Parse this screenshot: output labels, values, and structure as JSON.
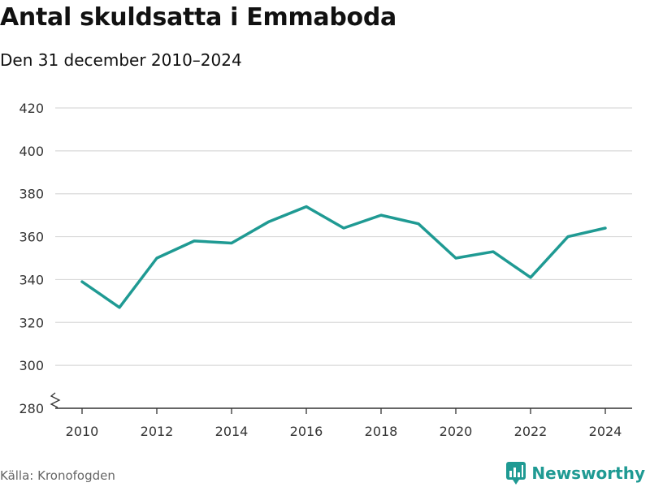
{
  "header": {
    "title": "Antal skuldsatta i Emmaboda",
    "subtitle": "Den 31 december 2010–2024"
  },
  "footer": {
    "source": "Källa: Kronofogden",
    "brand": "Newsworthy"
  },
  "colors": {
    "line": "#1f9a93",
    "grid": "#d9d9d9",
    "axis": "#333333",
    "brand": "#1f9a93"
  },
  "chart_data": {
    "type": "line",
    "x": [
      2010,
      2011,
      2012,
      2013,
      2014,
      2015,
      2016,
      2017,
      2018,
      2019,
      2020,
      2021,
      2022,
      2023,
      2024
    ],
    "series": [
      {
        "values": [
          339,
          327,
          350,
          358,
          357,
          367,
          374,
          364,
          370,
          366,
          350,
          353,
          341,
          360,
          364
        ]
      }
    ],
    "x_ticks": [
      "2010",
      "2012",
      "2014",
      "2016",
      "2018",
      "2020",
      "2022",
      "2024"
    ],
    "y_ticks": [
      "280",
      "300",
      "320",
      "340",
      "360",
      "380",
      "400",
      "420"
    ],
    "ylim": [
      280,
      420
    ],
    "xlim": [
      2010,
      2024
    ],
    "grid": true,
    "axis_break": true
  }
}
